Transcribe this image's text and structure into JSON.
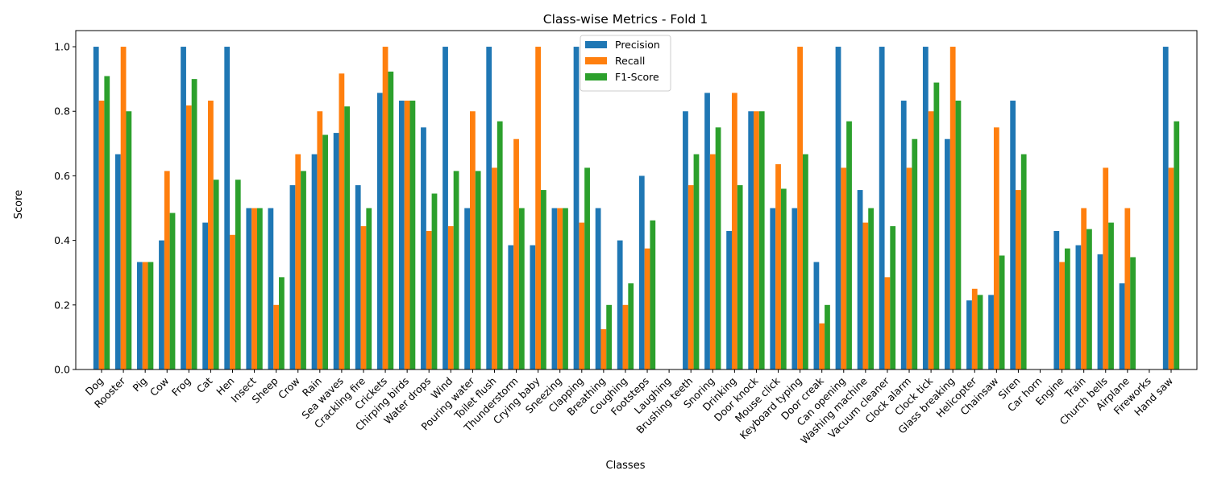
{
  "chart_data": {
    "type": "bar",
    "title": "Class-wise Metrics - Fold 1",
    "xlabel": "Classes",
    "ylabel": "Score",
    "ylim": [
      0,
      1.05
    ],
    "yticks": [
      0.0,
      0.2,
      0.4,
      0.6,
      0.8,
      1.0
    ],
    "legend_position": "top-center",
    "grid": false,
    "categories": [
      "Dog",
      "Rooster",
      "Pig",
      "Cow",
      "Frog",
      "Cat",
      "Hen",
      "Insect",
      "Sheep",
      "Crow",
      "Rain",
      "Sea waves",
      "Crackling fire",
      "Crickets",
      "Chirping birds",
      "Water drops",
      "Wind",
      "Pouring water",
      "Toilet flush",
      "Thunderstorm",
      "Crying baby",
      "Sneezing",
      "Clapping",
      "Breathing",
      "Coughing",
      "Footsteps",
      "Laughing",
      "Brushing teeth",
      "Snoring",
      "Drinking",
      "Door knock",
      "Mouse click",
      "Keyboard typing",
      "Door creak",
      "Can opening",
      "Washing machine",
      "Vacuum cleaner",
      "Clock alarm",
      "Clock tick",
      "Glass breaking",
      "Helicopter",
      "Chainsaw",
      "Siren",
      "Car horn",
      "Engine",
      "Train",
      "Church bells",
      "Airplane",
      "Fireworks",
      "Hand saw"
    ],
    "series": [
      {
        "name": "Precision",
        "color": "#1f77b4",
        "values": [
          1.0,
          0.667,
          0.333,
          0.4,
          1.0,
          0.455,
          1.0,
          0.5,
          0.5,
          0.571,
          0.667,
          0.733,
          0.571,
          0.857,
          0.833,
          0.75,
          1.0,
          0.5,
          1.0,
          0.385,
          0.385,
          0.5,
          1.0,
          0.5,
          0.4,
          0.6,
          0.0,
          0.8,
          0.857,
          0.429,
          0.8,
          0.5,
          0.5,
          0.333,
          1.0,
          0.556,
          1.0,
          0.833,
          1.0,
          0.714,
          0.214,
          0.231,
          0.833,
          0.0,
          0.429,
          0.385,
          0.357,
          0.267,
          0.0,
          1.0
        ]
      },
      {
        "name": "Recall",
        "color": "#ff7f0e",
        "values": [
          0.833,
          1.0,
          0.333,
          0.615,
          0.818,
          0.833,
          0.417,
          0.5,
          0.2,
          0.667,
          0.8,
          0.917,
          0.444,
          1.0,
          0.833,
          0.429,
          0.444,
          0.8,
          0.625,
          0.714,
          1.0,
          0.5,
          0.455,
          0.125,
          0.2,
          0.375,
          0.0,
          0.571,
          0.667,
          0.857,
          0.8,
          0.636,
          1.0,
          0.143,
          0.625,
          0.455,
          0.286,
          0.625,
          0.8,
          1.0,
          0.25,
          0.75,
          0.556,
          0.0,
          0.333,
          0.5,
          0.625,
          0.5,
          0.0,
          0.625
        ]
      },
      {
        "name": "F1-Score",
        "color": "#2ca02c",
        "values": [
          0.909,
          0.8,
          0.333,
          0.485,
          0.9,
          0.588,
          0.588,
          0.5,
          0.286,
          0.615,
          0.727,
          0.815,
          0.5,
          0.923,
          0.833,
          0.545,
          0.615,
          0.615,
          0.769,
          0.5,
          0.556,
          0.5,
          0.625,
          0.2,
          0.267,
          0.462,
          0.0,
          0.667,
          0.75,
          0.571,
          0.8,
          0.56,
          0.667,
          0.2,
          0.769,
          0.5,
          0.444,
          0.714,
          0.889,
          0.833,
          0.231,
          0.353,
          0.667,
          0.0,
          0.375,
          0.435,
          0.455,
          0.348,
          0.0,
          0.769
        ]
      }
    ]
  }
}
